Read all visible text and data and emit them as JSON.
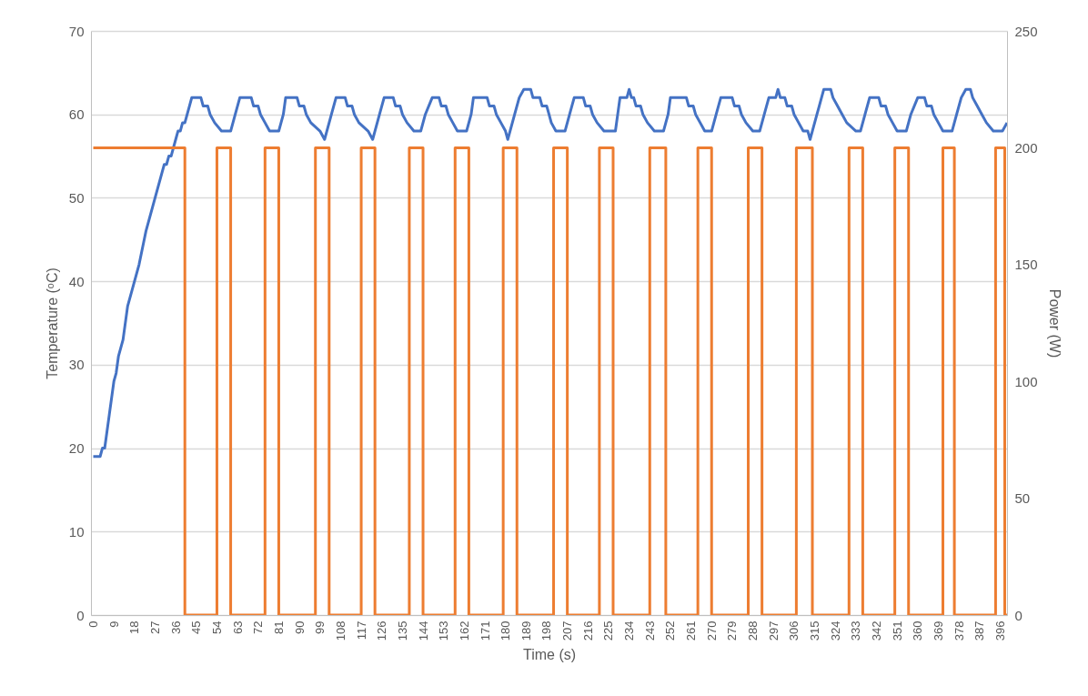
{
  "chart_data": {
    "type": "line",
    "xlabel": "Time (s)",
    "ylabel": "Temperature (ᵒC)",
    "y2label": "Power (W)",
    "xlim": [
      -1,
      399
    ],
    "xticks": [
      0,
      9,
      18,
      27,
      36,
      45,
      54,
      63,
      72,
      81,
      90,
      99,
      108,
      117,
      126,
      135,
      144,
      153,
      162,
      171,
      180,
      189,
      198,
      207,
      216,
      225,
      234,
      243,
      252,
      261,
      270,
      279,
      288,
      297,
      306,
      315,
      324,
      333,
      342,
      351,
      360,
      369,
      378,
      387,
      396
    ],
    "ylim": [
      0,
      70
    ],
    "yticks": [
      0,
      10,
      20,
      30,
      40,
      50,
      60,
      70
    ],
    "y2lim": [
      0,
      250
    ],
    "y2ticks": [
      0,
      50,
      100,
      150,
      200,
      250
    ],
    "grid": "y",
    "legend": false,
    "series": [
      {
        "color": "#4472c4",
        "x": [
          0,
          3,
          4,
          5,
          7,
          9,
          10,
          11,
          13,
          15,
          17,
          20,
          23,
          27,
          30,
          31,
          32,
          33,
          34,
          36,
          37,
          38,
          39,
          40,
          42,
          43,
          47,
          48,
          50,
          51,
          53,
          56,
          60,
          62,
          64,
          69,
          70,
          72,
          73,
          75,
          77,
          81,
          83,
          84,
          89,
          90,
          92,
          93,
          95,
          99,
          101,
          102,
          104,
          106,
          110,
          111,
          113,
          114,
          116,
          120,
          122,
          123,
          125,
          127,
          131,
          132,
          134,
          135,
          137,
          140,
          143,
          145,
          148,
          151,
          152,
          154,
          155,
          157,
          159,
          163,
          165,
          166,
          172,
          173,
          175,
          176,
          178,
          180,
          181,
          182,
          184,
          186,
          188,
          191,
          192,
          195,
          196,
          198,
          199,
          200,
          202,
          206,
          208,
          210,
          214,
          215,
          217,
          218,
          220,
          223,
          228,
          230,
          233,
          234,
          235,
          236,
          237,
          239,
          240,
          242,
          245,
          249,
          251,
          252,
          259,
          260,
          262,
          263,
          265,
          267,
          270,
          272,
          274,
          279,
          280,
          282,
          283,
          285,
          288,
          291,
          293,
          295,
          298,
          299,
          300,
          302,
          303,
          305,
          306,
          308,
          310,
          312,
          313,
          314,
          316,
          317,
          319,
          322,
          323,
          325,
          327,
          329,
          333,
          335,
          337,
          339,
          343,
          344,
          346,
          347,
          349,
          351,
          355,
          357,
          360,
          363,
          364,
          366,
          367,
          369,
          371,
          375,
          377,
          379,
          381,
          383,
          384,
          386,
          388,
          390,
          393,
          397,
          399
        ],
        "values": [
          19,
          19,
          20,
          20,
          24,
          28,
          29,
          31,
          33,
          37,
          39,
          42,
          46,
          50,
          53,
          54,
          54,
          55,
          55,
          57,
          58,
          58,
          59,
          59,
          61,
          62,
          62,
          61,
          61,
          60,
          59,
          58,
          58,
          60,
          62,
          62,
          61,
          61,
          60,
          59,
          58,
          58,
          60,
          62,
          62,
          61,
          61,
          60,
          59,
          58,
          57,
          58,
          60,
          62,
          62,
          61,
          61,
          60,
          59,
          58,
          57,
          58,
          60,
          62,
          62,
          61,
          61,
          60,
          59,
          58,
          58,
          60,
          62,
          62,
          61,
          61,
          60,
          59,
          58,
          58,
          60,
          62,
          62,
          61,
          61,
          60,
          59,
          58,
          57,
          58,
          60,
          62,
          63,
          63,
          62,
          62,
          61,
          61,
          60,
          59,
          58,
          58,
          60,
          62,
          62,
          61,
          61,
          60,
          59,
          58,
          58,
          62,
          62,
          63,
          62,
          62,
          61,
          61,
          60,
          59,
          58,
          58,
          60,
          62,
          62,
          61,
          61,
          60,
          59,
          58,
          58,
          60,
          62,
          62,
          61,
          61,
          60,
          59,
          58,
          58,
          60,
          62,
          62,
          63,
          62,
          62,
          61,
          61,
          60,
          59,
          58,
          58,
          57,
          58,
          60,
          61,
          63,
          63,
          62,
          61,
          60,
          59,
          58,
          58,
          60,
          62,
          62,
          61,
          61,
          60,
          59,
          58,
          58,
          60,
          62,
          62,
          61,
          61,
          60,
          59,
          58,
          58,
          60,
          62,
          63,
          63,
          62,
          61,
          60,
          59,
          58,
          58,
          59
        ]
      },
      {
        "type": "step",
        "color": "#ed7d31",
        "axis": "y2",
        "x": [
          0,
          40,
          54,
          60,
          75,
          81,
          97,
          103,
          117,
          123,
          138,
          144,
          158,
          164,
          179,
          185,
          201,
          207,
          221,
          227,
          243,
          250,
          264,
          270,
          286,
          292,
          307,
          314,
          330,
          336,
          350,
          356,
          371,
          376,
          394,
          398,
          399
        ],
        "values": [
          200,
          0,
          200,
          0,
          200,
          0,
          200,
          0,
          200,
          0,
          200,
          0,
          200,
          0,
          200,
          0,
          200,
          0,
          200,
          0,
          200,
          0,
          200,
          0,
          200,
          0,
          200,
          0,
          200,
          0,
          200,
          0,
          200,
          0,
          200,
          0,
          0
        ]
      }
    ]
  }
}
